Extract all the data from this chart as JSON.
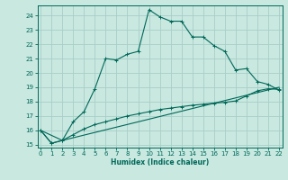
{
  "xlabel": "Humidex (Indice chaleur)",
  "bg_color": "#c8e8e0",
  "grid_color": "#a8cec8",
  "line_color": "#006858",
  "xlim": [
    -0.3,
    22.3
  ],
  "ylim": [
    14.8,
    24.7
  ],
  "yticks": [
    15,
    16,
    17,
    18,
    19,
    20,
    21,
    22,
    23,
    24
  ],
  "xticks": [
    0,
    1,
    2,
    3,
    4,
    5,
    6,
    7,
    8,
    9,
    10,
    11,
    12,
    13,
    14,
    15,
    16,
    17,
    18,
    19,
    20,
    21,
    22
  ],
  "main_x": [
    0,
    1,
    2,
    3,
    4,
    5,
    6,
    7,
    8,
    9,
    10,
    11,
    12,
    13,
    14,
    15,
    16,
    17,
    18,
    19,
    20,
    21,
    22
  ],
  "main_y": [
    16.0,
    15.1,
    15.3,
    16.6,
    17.3,
    18.9,
    21.0,
    20.9,
    21.3,
    21.5,
    24.4,
    23.9,
    23.6,
    23.6,
    22.5,
    22.5,
    21.9,
    21.5,
    20.2,
    20.3,
    19.4,
    19.2,
    18.8
  ],
  "line1_x": [
    0,
    1,
    2,
    3,
    4,
    5,
    6,
    7,
    8,
    9,
    10,
    11,
    12,
    13,
    14,
    15,
    16,
    17,
    18,
    19,
    20,
    21,
    22
  ],
  "line1_y": [
    16.0,
    15.1,
    15.3,
    15.7,
    16.1,
    16.4,
    16.6,
    16.8,
    17.0,
    17.15,
    17.3,
    17.45,
    17.55,
    17.65,
    17.75,
    17.82,
    17.9,
    17.95,
    18.05,
    18.4,
    18.75,
    18.9,
    18.85
  ],
  "line2_x": [
    0,
    2,
    22
  ],
  "line2_y": [
    16.0,
    15.3,
    19.0
  ]
}
